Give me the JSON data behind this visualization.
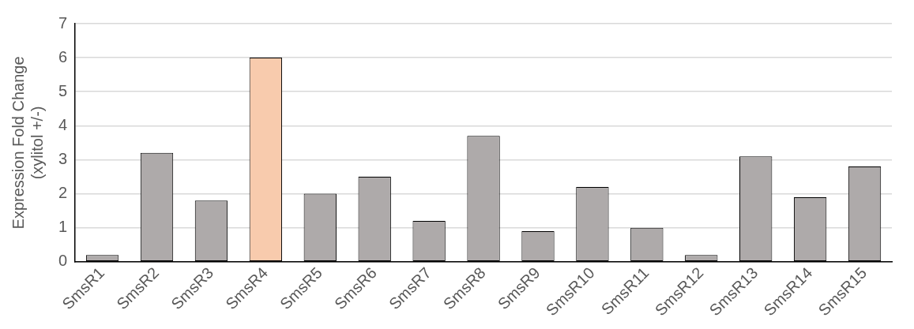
{
  "chart_data": {
    "type": "bar",
    "ylabel": "Expression Fold Change\n(xylitol +/-)",
    "categories": [
      "SmsR1",
      "SmsR2",
      "SmsR3",
      "SmsR4",
      "SmsR5",
      "SmsR6",
      "SmsR7",
      "SmsR8",
      "SmsR9",
      "SmsR10",
      "SmsR11",
      "SmsR12",
      "SmsR13",
      "SmsR14",
      "SmsR15"
    ],
    "values": [
      0.2,
      3.2,
      1.8,
      6.0,
      2.0,
      2.5,
      1.2,
      3.7,
      0.9,
      2.2,
      1.0,
      0.2,
      3.1,
      1.9,
      2.8
    ],
    "colors": [
      "#aeaaaa",
      "#aeaaaa",
      "#aeaaaa",
      "#f8cbad",
      "#aeaaaa",
      "#aeaaaa",
      "#aeaaaa",
      "#aeaaaa",
      "#aeaaaa",
      "#aeaaaa",
      "#aeaaaa",
      "#aeaaaa",
      "#aeaaaa",
      "#aeaaaa",
      "#aeaaaa"
    ],
    "ylim": [
      0,
      7
    ],
    "yticks": [
      0,
      1,
      2,
      3,
      4,
      5,
      6,
      7
    ],
    "grid": "y",
    "legend": false
  }
}
